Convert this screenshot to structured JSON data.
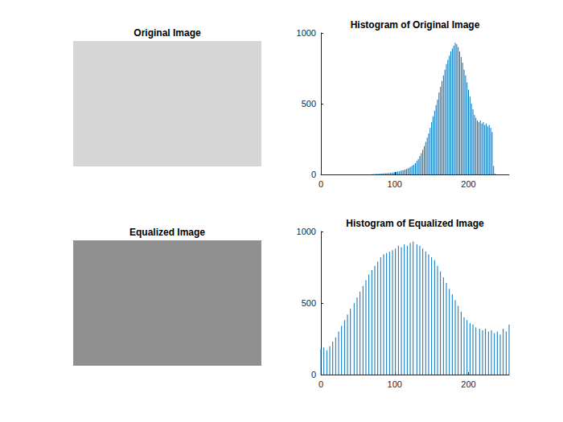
{
  "chart_data": [
    {
      "type": "image",
      "title": "Original Image",
      "color": "#d6d6d6"
    },
    {
      "type": "histogram",
      "title": "Histogram of Original Image",
      "color": "#0072bd",
      "x": [
        70,
        72,
        74,
        76,
        78,
        80,
        82,
        84,
        86,
        88,
        90,
        92,
        94,
        96,
        98,
        100,
        102,
        104,
        106,
        108,
        110,
        112,
        114,
        116,
        118,
        120,
        122,
        124,
        126,
        128,
        130,
        132,
        134,
        136,
        138,
        140,
        142,
        144,
        146,
        148,
        150,
        152,
        154,
        156,
        158,
        160,
        162,
        164,
        166,
        168,
        170,
        172,
        174,
        176,
        178,
        180,
        182,
        184,
        186,
        188,
        190,
        192,
        194,
        196,
        198,
        200,
        202,
        204,
        206,
        208,
        210,
        212,
        214,
        216,
        218,
        220,
        222,
        224,
        226,
        228,
        230,
        232,
        234,
        236
      ],
      "values": [
        2,
        3,
        3,
        4,
        4,
        5,
        6,
        7,
        7,
        8,
        9,
        10,
        12,
        13,
        14,
        16,
        18,
        20,
        22,
        25,
        28,
        30,
        34,
        38,
        42,
        48,
        55,
        62,
        70,
        80,
        95,
        110,
        130,
        150,
        175,
        200,
        230,
        260,
        290,
        330,
        370,
        410,
        450,
        490,
        530,
        580,
        620,
        660,
        700,
        740,
        780,
        810,
        840,
        870,
        890,
        910,
        930,
        920,
        900,
        870,
        830,
        790,
        740,
        700,
        650,
        600,
        550,
        500,
        460,
        420,
        400,
        380,
        370,
        380,
        360,
        370,
        350,
        360,
        340,
        350,
        330,
        300,
        60,
        5
      ],
      "xlim": [
        0,
        255
      ],
      "xticks": [
        0,
        100,
        200
      ],
      "ylim": [
        0,
        1000
      ],
      "yticks": [
        0,
        500,
        1000
      ],
      "grid": false
    },
    {
      "type": "image",
      "title": "Equalized Image",
      "color": "#8f8f8f"
    },
    {
      "type": "histogram",
      "title": "Histogram of Equalized Image",
      "color": "#0072bd",
      "x": [
        0,
        4,
        8,
        12,
        16,
        20,
        24,
        28,
        32,
        36,
        40,
        45,
        49,
        53,
        57,
        61,
        65,
        69,
        73,
        77,
        81,
        85,
        89,
        93,
        97,
        101,
        105,
        109,
        113,
        117,
        121,
        125,
        130,
        134,
        138,
        142,
        146,
        150,
        154,
        158,
        162,
        166,
        170,
        174,
        178,
        182,
        186,
        190,
        194,
        198,
        202,
        206,
        210,
        215,
        219,
        223,
        227,
        231,
        235,
        239,
        243,
        247,
        251,
        255
      ],
      "values": [
        180,
        190,
        170,
        200,
        230,
        260,
        300,
        340,
        380,
        420,
        460,
        500,
        540,
        580,
        620,
        660,
        700,
        730,
        760,
        790,
        820,
        840,
        850,
        860,
        870,
        880,
        900,
        890,
        910,
        900,
        920,
        930,
        910,
        900,
        880,
        860,
        840,
        820,
        800,
        760,
        720,
        680,
        640,
        600,
        560,
        520,
        480,
        440,
        400,
        380,
        360,
        350,
        330,
        320,
        310,
        320,
        300,
        310,
        290,
        300,
        280,
        320,
        300,
        350
      ],
      "xlim": [
        0,
        255
      ],
      "xticks": [
        0,
        100,
        200
      ],
      "ylim": [
        0,
        1000
      ],
      "yticks": [
        0,
        500,
        1000
      ],
      "grid": false
    }
  ]
}
